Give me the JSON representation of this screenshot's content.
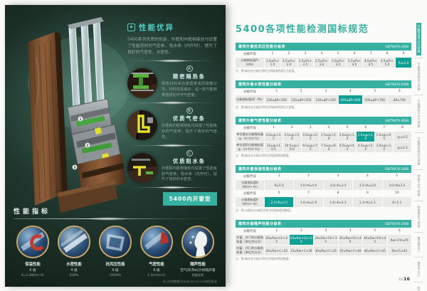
{
  "colors": {
    "accent_teal": "#35b0a1",
    "highlight_cell": "#0fa093",
    "table_cell_bg": "#e9e9e6",
    "gold_ring": "#c9a86a"
  },
  "left_page": {
    "section_title": "性能优异",
    "intro": "5400系列优质的性能，外框和内梃相接处均设置了性能良好的气密条、阻水条（内开时），提升了良好的气密性、水密性。",
    "callouts": [
      {
        "letter": "A",
        "title": "精密隔热条",
        "body": "隔热材料来自泰国泰诺风保泰公司，材料性能良好，是一款节能效果理想的平开气密窗；"
      },
      {
        "letter": "B",
        "title": "优质气密条",
        "body": "外框和内梃相接处均设置了性能良好的气密条，提升了良好的气密性；"
      },
      {
        "letter": "C",
        "title": "优质阻水条",
        "body": "外框和内梃相接处均设置了性能良好气密条、阻水条（内开时），提升了良好的水密性。"
      }
    ],
    "model_badge": "5400内开窗型",
    "indicators_title": "性能指标",
    "indicators": [
      {
        "name": "保温性能",
        "grade": "6 级",
        "value": "K=2.2W/(m²·K)"
      },
      {
        "name": "水密性能",
        "grade": "4 级",
        "value": "350Pa"
      },
      {
        "name": "抗风压性能",
        "grade": "9 级",
        "value": "5000Pa"
      },
      {
        "name": "气密性能",
        "grade": "6 级",
        "value": "1.2m³/(m·h)"
      },
      {
        "name": "隔声性能",
        "grade": "空气声(Rw)计权隔声量",
        "value": "性能优良"
      }
    ],
    "footnote": "*以上检测数据引自GB/T8478-2008规范标准"
  },
  "right_page": {
    "title": "5400各项性能检测国标规范",
    "tables": [
      {
        "name": "建筑外窗抗风压性能分级表",
        "standard": "GB/T8478-2008",
        "rows": [
          {
            "type": "code",
            "label": "分级代号",
            "highlight": -1,
            "cells": [
              "1",
              "2",
              "3",
              "4",
              "5",
              "6",
              "7",
              "8",
              "9"
            ]
          },
          {
            "type": "value",
            "label": "分级指标值P₃（kPa）",
            "highlight": 8,
            "cells": [
              "1.0≤P₃<1.5",
              "1.5≤P₃<2.0",
              "2.0≤P₃<2.5",
              "2.5≤P₃<3.0",
              "3.0≤P₃<3.5",
              "3.5≤P₃<4.0",
              "4.0≤P₃<4.5",
              "4.5≤P₃<5.0",
              "P₃≥5.0"
            ]
          }
        ],
        "note": "注：第9级应在分级后同时注明具体检测压力差值。"
      },
      {
        "name": "建筑外窗水密性能分级表",
        "standard": "GB/T8478-2008",
        "rows": [
          {
            "type": "code",
            "label": "分级代号",
            "highlight": -1,
            "cells": [
              "1",
              "2",
              "3",
              "4",
              "5",
              "6"
            ]
          },
          {
            "type": "value",
            "label": "分级指标值ΔP（Pa）",
            "highlight": 3,
            "cells": [
              "100≤ΔP<150",
              "150≤ΔP<250",
              "250≤ΔP<350",
              "350≤ΔP<500",
              "500≤ΔP<700",
              "ΔP≥700"
            ]
          }
        ],
        "note": "注：第6级应在分级后同时注明具体检测压力差值。"
      },
      {
        "name": "建筑外窗气密性能分级表",
        "standard": "GB/T8478-2008",
        "rows": [
          {
            "type": "code",
            "label": "分级代号",
            "highlight": -1,
            "cells": [
              "1",
              "2",
              "3",
              "4",
              "5",
              "6",
              "7",
              "8"
            ]
          },
          {
            "type": "value",
            "label": "单位缝长分级指标值q₁（m³/(m·h)）",
            "highlight": 5,
            "cells": [
              "4.0≥q₁>3.5",
              "3.5≥q₁>3.0",
              "3.0≥q₁>2.5",
              "2.5≥q₁>2.0",
              "2.0≥q₁>1.5",
              "1.5≥q₁>1.0",
              "1.0≥q₁>0.5",
              "q₁≤0.5"
            ]
          },
          {
            "type": "value",
            "label": "单位面积分级指标值q₂（m³/(m²·h)）",
            "highlight": -1,
            "cells": [
              "12≥q₂>10.5",
              "10.5≥q₂>9.0",
              "9.0≥q₂>7.5",
              "7.5≥q₂>6.0",
              "6.0≥q₂>4.5",
              "4.5≥q₂>3.0",
              "3.0≥q₂>1.5",
              "q₂≤1.5"
            ]
          }
        ],
        "note": "注：第8级应在分级后同时注明具体检测数值。"
      },
      {
        "name": "建筑外窗保温性能分级表",
        "standard": "GB/T8478-2008",
        "rows": [
          {
            "type": "code",
            "label": "分级代号",
            "highlight": -1,
            "cells": [
              "1",
              "2",
              "3",
              "4",
              "5"
            ]
          },
          {
            "type": "value",
            "label": "分级指标值K（W/(m²·K)）",
            "highlight": -1,
            "cells": [
              "K≥5.0",
              "5.0>K≥4.0",
              "4.0>K≥3.5",
              "3.5>K≥3.0",
              "3.0>K≥2.5"
            ]
          },
          {
            "type": "code",
            "label": "分级代号",
            "highlight": -1,
            "cells": [
              "6",
              "7",
              "8",
              "9",
              "10"
            ]
          },
          {
            "type": "value",
            "label": "分级指标值K（W/(m²·K)）",
            "highlight": 0,
            "cells": [
              "2.5>K≥2.0",
              "2.0>K≥1.6",
              "1.6>K≥1.3",
              "1.3>K≥1.1",
              "K<1.1"
            ]
          }
        ],
        "note": "注：第10级应在分级后同时注明具体检测数值。"
      },
      {
        "name": "建筑外窗隔声性能分级表",
        "standard": "GB/T8478-2008",
        "rows": [
          {
            "type": "code",
            "label": "分级代号",
            "highlight": -1,
            "cells": [
              "1",
              "2",
              "3",
              "4",
              "5",
              "6"
            ]
          },
          {
            "type": "value",
            "label": "外窗、外门的分级指标值（单位为分贝）",
            "highlight": 1,
            "cells": [
              "20≤Rw+Ctr<25",
              "25≤Rw+Ctr<30",
              "30≤Rw+Ctr<35",
              "35≤Rw+Ctr<40",
              "40≤Rw+Ctr<45",
              "Rw+Ctr≥45"
            ]
          },
          {
            "type": "value",
            "label": "内窗、内门的分级指标值（单位为分贝）",
            "highlight": -1,
            "cells": [
              "20≤Rw+C<25",
              "25≤Rw+C<30",
              "30≤Rw+C<35",
              "35≤Rw+C<40",
              "40≤Rw+C<45",
              "Rw+C≥45"
            ]
          }
        ],
        "note": "注：第6级应在分级后同时注明具体检测数值。"
      }
    ],
    "sidebar_tabs": [
      {
        "label": "节能保温平开气密窗",
        "active": true
      },
      {
        "label": "节能保温推拉气密窗",
        "active": false
      },
      {
        "label": "节能隔热平开气密窗",
        "active": false
      },
      {
        "label": "节能隔热推拉气密窗",
        "active": false
      },
      {
        "label": "经典平开气密窗",
        "active": false
      },
      {
        "label": "经典推拉气密窗",
        "active": false
      },
      {
        "label": "重型推拉门",
        "active": false
      },
      {
        "label": "重型平开门",
        "active": false
      },
      {
        "label": "阳光房",
        "active": false
      }
    ],
    "page_number": {
      "current": "15",
      "separator": "/",
      "total": "16"
    }
  }
}
